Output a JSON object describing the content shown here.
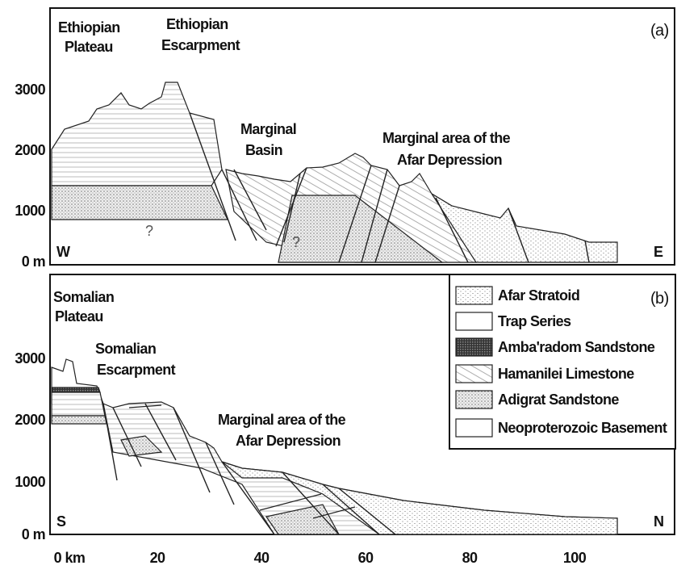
{
  "panel_a": {
    "label": "(a)",
    "west": "W",
    "east": "E",
    "annotations": [
      {
        "lines": [
          "Ethiopian",
          "Plateau"
        ]
      },
      {
        "lines": [
          "Ethiopian",
          "Escarpment"
        ]
      },
      {
        "lines": [
          "Marginal",
          "Basin"
        ]
      },
      {
        "lines": [
          "Marginal area of the",
          "Afar Depression"
        ]
      }
    ],
    "unknowns": [
      "?",
      "?"
    ],
    "y_axis_labels": [
      "3000",
      "2000",
      "1000",
      "0 m"
    ]
  },
  "panel_b": {
    "label": "(b)",
    "south": "S",
    "north": "N",
    "annotations": [
      {
        "lines": [
          "Somalian",
          "Plateau"
        ]
      },
      {
        "lines": [
          "Somalian",
          "Escarpment"
        ]
      },
      {
        "lines": [
          "Marginal area of the",
          "Afar Depression"
        ]
      }
    ],
    "y_axis_labels": [
      "3000",
      "2000",
      "1000",
      "0 m"
    ]
  },
  "x_axis_labels": [
    "0 km",
    "20",
    "40",
    "60",
    "80",
    "100"
  ],
  "legend": [
    "Afar Stratoid",
    "Trap Series",
    "Amba'radom Sandstone",
    "Hamanilei Limestone",
    "Adigrat Sandstone",
    "Neoproterozoic Basement"
  ]
}
